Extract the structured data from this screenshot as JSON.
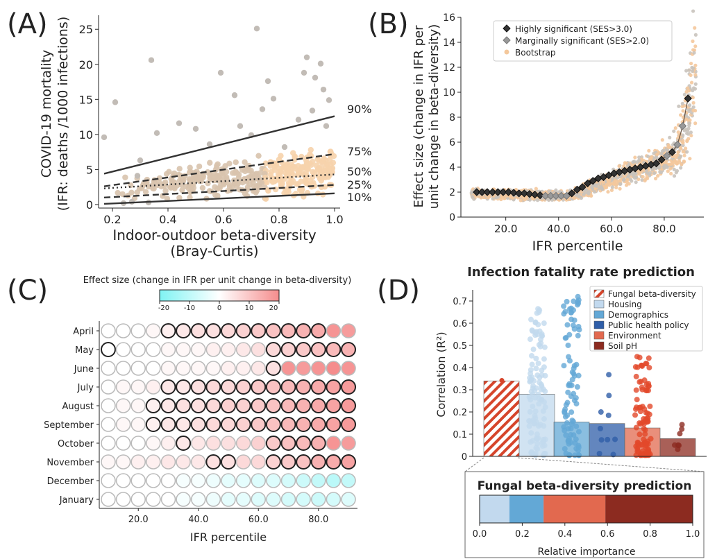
{
  "panels": {
    "A": "(A)",
    "B": "(B)",
    "C": "(C)",
    "D": "(D)"
  },
  "chart_data": [
    {
      "id": "A",
      "type": "scatter",
      "xlabel_line1": "Indoor-outdoor beta-diversity",
      "xlabel_line2": "(Bray-Curtis)",
      "ylabel_line1": "COVID-19 mortality",
      "ylabel_line2": "(IFR: deaths /1000 infections)",
      "xlim": [
        0.15,
        1.02
      ],
      "ylim": [
        -0.5,
        27
      ],
      "xticks": [
        0.2,
        0.4,
        0.6,
        0.8,
        1.0
      ],
      "xtick_labels": [
        "0.2",
        "0.4",
        "0.6",
        "0.8",
        "1.0"
      ],
      "yticks": [
        0,
        5,
        10,
        15,
        20,
        25
      ],
      "ytick_labels": [
        "0",
        "5",
        "10",
        "15",
        "20",
        "25"
      ],
      "quantile_lines": [
        {
          "label": "90%",
          "style": "solid",
          "x": [
            0.17,
            1.0
          ],
          "y": [
            4.4,
            12.6
          ]
        },
        {
          "label": "75%",
          "style": "dashed",
          "x": [
            0.17,
            1.0
          ],
          "y": [
            2.6,
            7.2
          ]
        },
        {
          "label": "50%",
          "style": "dotted",
          "x": [
            0.17,
            1.0
          ],
          "y": [
            2.3,
            4.3
          ]
        },
        {
          "label": "25%",
          "style": "dashed",
          "x": [
            0.17,
            1.0
          ],
          "y": [
            1.0,
            2.8
          ]
        },
        {
          "label": "10%",
          "style": "solid",
          "x": [
            0.17,
            1.0
          ],
          "y": [
            0.1,
            1.6
          ]
        }
      ],
      "outliers": [
        [
          0.17,
          9.6
        ],
        [
          0.21,
          14.6
        ],
        [
          0.29,
          4.1
        ],
        [
          0.3,
          6.3
        ],
        [
          0.34,
          20.6
        ],
        [
          0.55,
          8.6
        ],
        [
          0.59,
          18.8
        ],
        [
          0.64,
          15.6
        ],
        [
          0.72,
          25.1
        ],
        [
          0.74,
          13.6
        ],
        [
          0.76,
          17.6
        ],
        [
          0.78,
          15.1
        ],
        [
          0.9,
          21.0
        ],
        [
          0.95,
          20.1
        ],
        [
          0.93,
          18.1
        ],
        [
          0.96,
          16.4
        ],
        [
          0.89,
          18.8
        ],
        [
          0.98,
          14.9
        ],
        [
          0.87,
          12.1
        ],
        [
          0.92,
          13.4
        ],
        [
          0.97,
          11.2
        ],
        [
          0.5,
          10.8
        ],
        [
          0.44,
          11.6
        ],
        [
          0.36,
          10.2
        ],
        [
          0.66,
          11.2
        ],
        [
          0.7,
          9.9
        ],
        [
          0.82,
          8.2
        ],
        [
          0.24,
          0.2
        ],
        [
          0.27,
          0.4
        ],
        [
          0.33,
          0.3
        ]
      ]
    },
    {
      "id": "B",
      "type": "scatter",
      "xlabel": "IFR percentile",
      "ylabel_line1": "Effect size (change in IFR per",
      "ylabel_line2": "unit change in beta-diversity)",
      "xlim": [
        3,
        95
      ],
      "ylim": [
        0,
        16
      ],
      "xticks": [
        20,
        40,
        60,
        80
      ],
      "xtick_labels": [
        "20.0",
        "40.0",
        "60.0",
        "80.0"
      ],
      "yticks": [
        0,
        2,
        4,
        6,
        8,
        10,
        12,
        14,
        16
      ],
      "ytick_labels": [
        "0",
        "2",
        "4",
        "6",
        "8",
        "10",
        "12",
        "14",
        "16"
      ],
      "legend": [
        {
          "label": "Highly significant (SES>3.0)",
          "marker": "diamond",
          "color": "#333333"
        },
        {
          "label": "Marginally significant (SES>2.0)",
          "marker": "diamond",
          "color": "#999999"
        },
        {
          "label": "Bootstrap",
          "marker": "circle",
          "color": "#f4c89c"
        }
      ],
      "series_points": [
        [
          9,
          2.0,
          "h"
        ],
        [
          11,
          2.0,
          "h"
        ],
        [
          13,
          2.0,
          "h"
        ],
        [
          15,
          2.0,
          "h"
        ],
        [
          17,
          2.0,
          "h"
        ],
        [
          19,
          2.0,
          "h"
        ],
        [
          21,
          2.0,
          "h"
        ],
        [
          23,
          1.95,
          "h"
        ],
        [
          25,
          1.9,
          "h"
        ],
        [
          27,
          1.9,
          "h"
        ],
        [
          29,
          1.85,
          "h"
        ],
        [
          31,
          1.8,
          "h"
        ],
        [
          33,
          1.75,
          "h"
        ],
        [
          35,
          1.7,
          "m"
        ],
        [
          37,
          1.7,
          "m"
        ],
        [
          39,
          1.7,
          "m"
        ],
        [
          41,
          1.7,
          "m"
        ],
        [
          43,
          1.7,
          "m"
        ],
        [
          45,
          1.9,
          "h"
        ],
        [
          47,
          2.2,
          "h"
        ],
        [
          49,
          2.4,
          "h"
        ],
        [
          51,
          2.7,
          "h"
        ],
        [
          53,
          2.9,
          "h"
        ],
        [
          55,
          3.1,
          "h"
        ],
        [
          57,
          3.2,
          "h"
        ],
        [
          59,
          3.35,
          "h"
        ],
        [
          61,
          3.5,
          "h"
        ],
        [
          63,
          3.6,
          "h"
        ],
        [
          65,
          3.7,
          "h"
        ],
        [
          67,
          3.8,
          "h"
        ],
        [
          69,
          3.9,
          "h"
        ],
        [
          71,
          4.0,
          "h"
        ],
        [
          73,
          4.1,
          "h"
        ],
        [
          75,
          4.2,
          "h"
        ],
        [
          77,
          4.3,
          "h"
        ],
        [
          79,
          4.6,
          "h"
        ],
        [
          81,
          4.9,
          "m"
        ],
        [
          83,
          5.2,
          "h"
        ],
        [
          85,
          5.8,
          "m"
        ],
        [
          87,
          7.3,
          "m"
        ],
        [
          89,
          9.5,
          "h"
        ]
      ]
    },
    {
      "id": "C",
      "type": "heatmap",
      "colorbar_title": "Effect size (change in IFR per unit change in beta-diversity)",
      "colorbar_ticks": [
        -20,
        -10,
        0,
        10,
        20
      ],
      "colorbar_tick_labels": [
        "-20",
        "-10",
        "0",
        "10",
        "20"
      ],
      "xlabel": "IFR percentile",
      "xticks": [
        20,
        40,
        60,
        80
      ],
      "xtick_labels": [
        "20.0",
        "40.0",
        "60.0",
        "80.0"
      ],
      "x": [
        10,
        15,
        20,
        25,
        30,
        35,
        40,
        45,
        50,
        55,
        60,
        65,
        70,
        75,
        80,
        85,
        90
      ],
      "rows": [
        "April",
        "May",
        "June",
        "July",
        "August",
        "September",
        "October",
        "November",
        "December",
        "January"
      ],
      "values": [
        [
          0,
          0,
          0,
          1,
          2,
          3,
          4,
          4,
          5,
          6,
          7,
          8,
          9,
          10,
          11,
          14,
          13
        ],
        [
          0,
          0,
          0,
          0,
          1,
          1,
          1,
          2,
          2,
          3,
          4,
          5,
          6,
          7,
          8,
          9,
          10
        ],
        [
          0,
          0,
          0,
          0,
          1,
          1,
          1,
          1,
          2,
          2,
          3,
          4,
          14,
          13,
          14,
          15,
          14
        ],
        [
          0,
          1,
          1,
          2,
          3,
          3,
          4,
          5,
          5,
          6,
          7,
          8,
          9,
          10,
          11,
          12,
          13
        ],
        [
          0,
          1,
          1,
          2,
          3,
          4,
          4,
          5,
          6,
          6,
          7,
          8,
          9,
          10,
          11,
          12,
          13
        ],
        [
          0,
          1,
          1,
          2,
          3,
          3,
          4,
          5,
          5,
          6,
          7,
          8,
          9,
          10,
          11,
          12,
          13
        ],
        [
          0,
          0,
          0,
          1,
          2,
          3,
          3,
          4,
          4,
          5,
          6,
          7,
          8,
          9,
          10,
          14,
          13
        ],
        [
          1,
          1,
          2,
          2,
          3,
          3,
          3,
          4,
          4,
          5,
          5,
          6,
          7,
          8,
          10,
          11,
          12
        ],
        [
          0,
          0,
          0,
          0,
          0,
          -1,
          -1,
          -2,
          -3,
          -3,
          -4,
          -4,
          -5,
          -6,
          -7,
          -8,
          -7
        ],
        [
          0,
          0,
          0,
          0,
          0,
          -1,
          -1,
          -2,
          -3,
          -3,
          -4,
          -4,
          -5,
          -5,
          -6,
          -5,
          -4
        ]
      ],
      "significant": [
        [
          0,
          0,
          0,
          0,
          1,
          1,
          1,
          1,
          1,
          1,
          1,
          1,
          1,
          1,
          1,
          0,
          0
        ],
        [
          1,
          0,
          0,
          0,
          0,
          0,
          0,
          0,
          0,
          0,
          0,
          1,
          1,
          1,
          1,
          1,
          1
        ],
        [
          0,
          0,
          0,
          0,
          0,
          0,
          0,
          0,
          0,
          0,
          0,
          1,
          0,
          0,
          0,
          0,
          0
        ],
        [
          0,
          0,
          0,
          0,
          1,
          1,
          1,
          1,
          1,
          1,
          1,
          1,
          1,
          1,
          1,
          1,
          1
        ],
        [
          0,
          0,
          0,
          1,
          1,
          1,
          1,
          1,
          1,
          1,
          1,
          1,
          1,
          1,
          1,
          1,
          1
        ],
        [
          0,
          0,
          0,
          1,
          1,
          1,
          1,
          1,
          1,
          1,
          1,
          1,
          1,
          1,
          1,
          1,
          1
        ],
        [
          0,
          0,
          0,
          0,
          0,
          1,
          0,
          0,
          0,
          0,
          0,
          1,
          1,
          1,
          1,
          0,
          0
        ],
        [
          0,
          0,
          0,
          0,
          0,
          0,
          0,
          1,
          1,
          0,
          0,
          1,
          1,
          1,
          1,
          1,
          1
        ],
        [
          0,
          0,
          0,
          0,
          0,
          0,
          0,
          0,
          0,
          0,
          0,
          0,
          0,
          0,
          0,
          0,
          0
        ],
        [
          0,
          0,
          0,
          0,
          0,
          0,
          0,
          0,
          0,
          0,
          0,
          0,
          0,
          0,
          0,
          0,
          0
        ]
      ]
    },
    {
      "id": "D",
      "type": "bar",
      "title": "Infection fatality rate prediction",
      "ylabel": "Correlation (R²)",
      "ylim": [
        0,
        0.75
      ],
      "yticks": [
        0,
        0.1,
        0.2,
        0.3,
        0.4,
        0.5,
        0.6,
        0.7
      ],
      "ytick_labels": [
        "0",
        "0.1",
        "0.2",
        "0.3",
        "0.4",
        "0.5",
        "0.6",
        "0.7"
      ],
      "categories": [
        "Fungal beta-diversity",
        "Housing",
        "Demographics",
        "Public health policy",
        "Environment",
        "Soil pH"
      ],
      "colors": [
        "#d6452b",
        "#c2d9ee",
        "#63a8d6",
        "#2f5ea8",
        "#e2694f",
        "#8c2b20"
      ],
      "values": [
        0.34,
        0.28,
        0.155,
        0.148,
        0.128,
        0.08
      ],
      "inset": {
        "title": "Fungal beta-diversity prediction",
        "xlabel": "Relative importance",
        "xticks": [
          0,
          0.2,
          0.4,
          0.6,
          0.8,
          1.0
        ],
        "xtick_labels": [
          "0.0",
          "0.2",
          "0.4",
          "0.6",
          "0.8",
          "1.0"
        ],
        "segments": [
          {
            "value": 0.14,
            "color": "#c2d9ee"
          },
          {
            "value": 0.16,
            "color": "#63a8d6"
          },
          {
            "value": 0.29,
            "color": "#e2694f"
          },
          {
            "value": 0.41,
            "color": "#8c2b20"
          }
        ]
      }
    }
  ]
}
